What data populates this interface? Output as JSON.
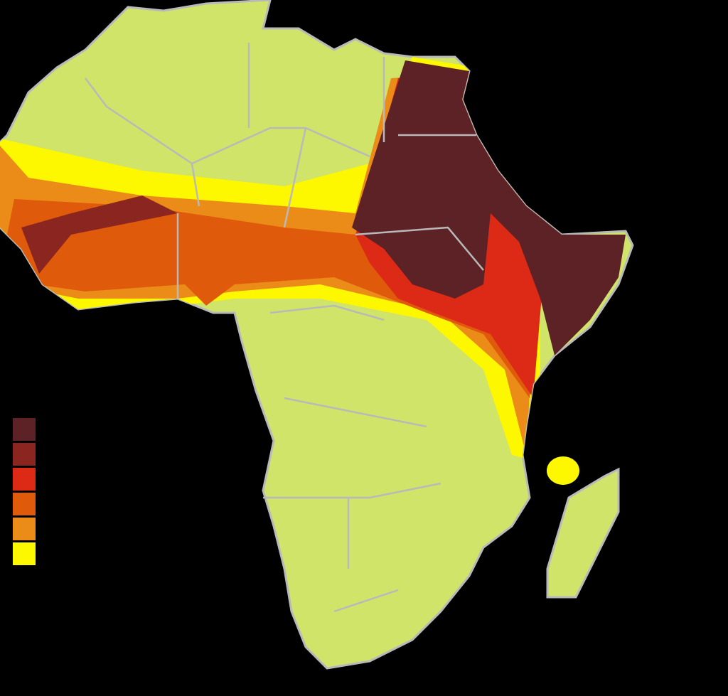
{
  "legend": {
    "colors": [
      "#5c2226",
      "#8b2520",
      "#dc2a17",
      "#e05a0c",
      "#ec8c18",
      "#fdf700"
    ]
  }
}
